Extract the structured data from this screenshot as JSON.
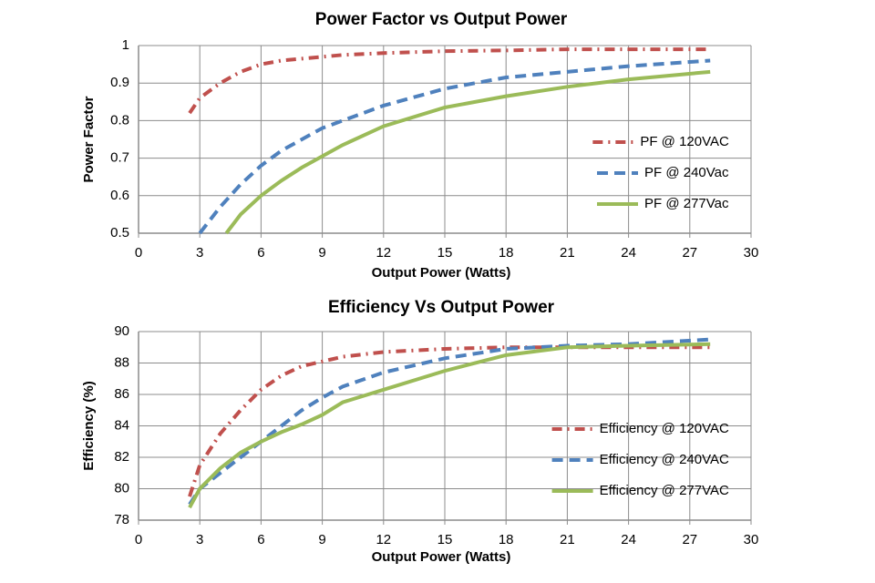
{
  "chart_data": [
    {
      "type": "line",
      "title": "Power Factor vs Output Power",
      "xlabel": "Output Power (Watts)",
      "ylabel": "Power Factor",
      "xlim": [
        0,
        30
      ],
      "xticks": [
        0,
        3,
        6,
        9,
        12,
        15,
        18,
        21,
        24,
        27,
        30
      ],
      "ylim": [
        0.5,
        1
      ],
      "yticks": [
        0.5,
        0.6,
        0.7,
        0.8,
        0.9,
        1
      ],
      "grid": true,
      "legend": "lower right",
      "series": [
        {
          "name": "PF @ 120VAC",
          "color": "#c0504d",
          "style": "dash-dot",
          "x": [
            2.5,
            3,
            4,
            5,
            6,
            7,
            8,
            9,
            10,
            12,
            15,
            18,
            21,
            24,
            28
          ],
          "values": [
            0.82,
            0.86,
            0.9,
            0.93,
            0.95,
            0.96,
            0.965,
            0.97,
            0.975,
            0.98,
            0.985,
            0.987,
            0.99,
            0.99,
            0.99
          ]
        },
        {
          "name": "PF @ 240Vac",
          "color": "#4f81bd",
          "style": "dashed",
          "x": [
            3,
            4,
            5,
            6,
            7,
            8,
            9,
            10,
            12,
            15,
            18,
            21,
            24,
            28
          ],
          "values": [
            0.5,
            0.57,
            0.63,
            0.68,
            0.72,
            0.75,
            0.78,
            0.8,
            0.84,
            0.885,
            0.915,
            0.93,
            0.945,
            0.96
          ]
        },
        {
          "name": "PF @ 277Vac",
          "color": "#9bbb59",
          "style": "solid",
          "x": [
            4.3,
            5,
            6,
            7,
            8,
            9,
            10,
            12,
            15,
            18,
            21,
            24,
            28
          ],
          "values": [
            0.5,
            0.55,
            0.6,
            0.64,
            0.675,
            0.705,
            0.735,
            0.785,
            0.835,
            0.865,
            0.89,
            0.91,
            0.93
          ]
        }
      ]
    },
    {
      "type": "line",
      "title": "Efficiency Vs Output Power",
      "xlabel": "Output Power (Watts)",
      "ylabel": "Efficiency (%)",
      "xlim": [
        0,
        30
      ],
      "xticks": [
        0,
        3,
        6,
        9,
        12,
        15,
        18,
        21,
        24,
        27,
        30
      ],
      "ylim": [
        78,
        90
      ],
      "yticks": [
        78,
        80,
        82,
        84,
        86,
        88,
        90
      ],
      "grid": true,
      "legend": "lower right",
      "series": [
        {
          "name": "Efficiency @ 120VAC",
          "color": "#c0504d",
          "style": "dash-dot",
          "x": [
            2.5,
            3,
            4,
            5,
            6,
            7,
            8,
            9,
            10,
            12,
            15,
            18,
            21,
            24,
            28
          ],
          "values": [
            79.5,
            81.5,
            83.5,
            85,
            86.3,
            87.2,
            87.8,
            88.1,
            88.4,
            88.7,
            88.9,
            89,
            89,
            89,
            89
          ]
        },
        {
          "name": "Efficiency @ 240VAC",
          "color": "#4f81bd",
          "style": "dashed",
          "x": [
            2.5,
            3,
            4,
            5,
            6,
            7,
            8,
            9,
            10,
            12,
            15,
            18,
            21,
            24,
            28
          ],
          "values": [
            79,
            80,
            81,
            82,
            83,
            84,
            85,
            85.8,
            86.5,
            87.4,
            88.3,
            88.9,
            89.1,
            89.2,
            89.5
          ]
        },
        {
          "name": "Efficiency @ 277VAC",
          "color": "#9bbb59",
          "style": "solid",
          "x": [
            2.5,
            3,
            4,
            5,
            6,
            7,
            8,
            9,
            10,
            12,
            15,
            18,
            21,
            24,
            28
          ],
          "values": [
            78.8,
            80,
            81.3,
            82.3,
            83,
            83.6,
            84.1,
            84.7,
            85.5,
            86.3,
            87.5,
            88.5,
            89,
            89.1,
            89.2
          ]
        }
      ]
    }
  ]
}
